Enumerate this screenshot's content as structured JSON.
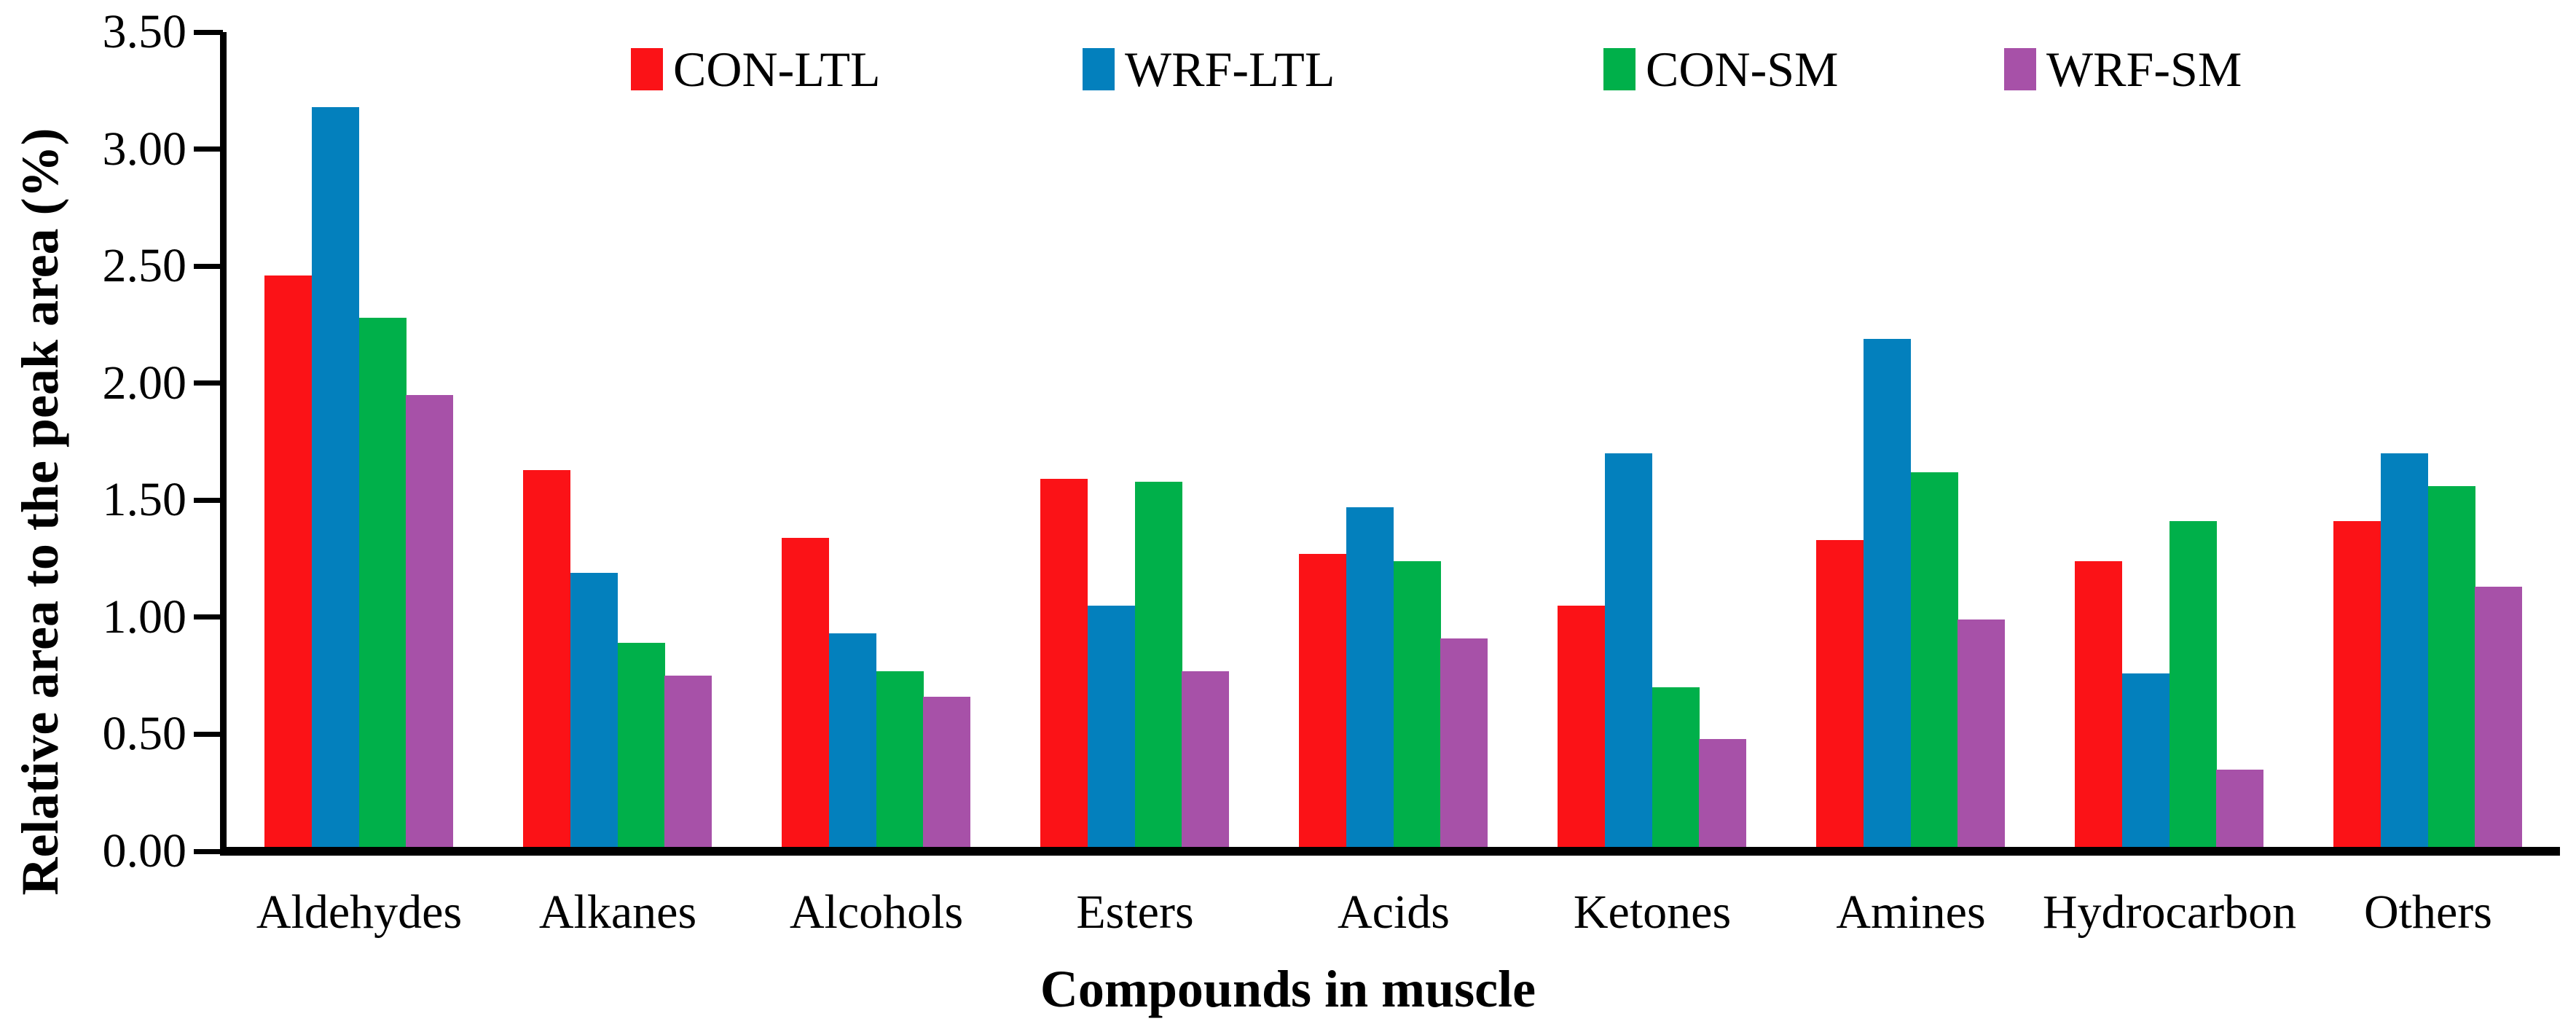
{
  "chart_data": {
    "type": "bar",
    "title": "",
    "xlabel": "Compounds in muscle",
    "ylabel": "Relative area to the peak area (%)",
    "categories": [
      "Aldehydes",
      "Alkanes",
      "Alcohols",
      "Esters",
      "Acids",
      "Ketones",
      "Amines",
      "Hydrocarbon",
      "Others"
    ],
    "series": [
      {
        "name": "CON-LTL",
        "color": "#FB1217",
        "values": [
          2.46,
          1.63,
          1.34,
          1.59,
          1.27,
          1.05,
          1.33,
          1.24,
          1.41
        ]
      },
      {
        "name": "WRF-LTL",
        "color": "#0380BD",
        "values": [
          3.18,
          1.19,
          0.93,
          1.05,
          1.47,
          1.7,
          2.19,
          0.76,
          1.7
        ]
      },
      {
        "name": "CON-SM",
        "color": "#00B04A",
        "values": [
          2.28,
          0.89,
          0.77,
          1.58,
          1.24,
          0.7,
          1.62,
          1.41,
          1.56
        ]
      },
      {
        "name": "WRF-SM",
        "color": "#A751A8",
        "values": [
          1.95,
          0.75,
          0.66,
          0.77,
          0.91,
          0.48,
          0.99,
          0.35,
          1.13
        ]
      }
    ],
    "ylim": [
      0,
      3.5
    ],
    "ytick_step": 0.5,
    "ytick_labels": [
      "0.00",
      "0.50",
      "1.00",
      "1.50",
      "2.00",
      "2.50",
      "3.00",
      "3.50"
    ],
    "grid": "off",
    "legend_position": "top",
    "axis_color": "#000000",
    "background": "#ffffff"
  }
}
